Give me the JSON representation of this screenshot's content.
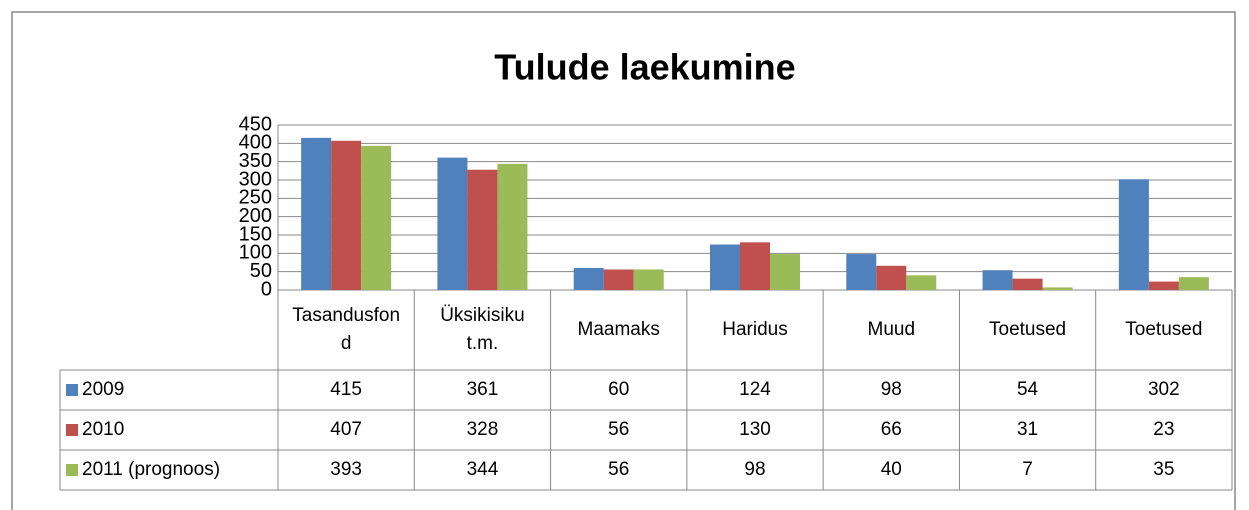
{
  "chart_data": {
    "type": "bar",
    "title": "Tulude laekumine",
    "categories": [
      "Tasandusfond",
      "Üksikisiku t.m.",
      "Maamaks",
      "Haridus",
      "Muud",
      "Toetused",
      "Toetused"
    ],
    "series": [
      {
        "name": "2009",
        "color": "#4f81bd",
        "values": [
          415,
          361,
          60,
          124,
          98,
          54,
          302
        ]
      },
      {
        "name": "2010",
        "color": "#c0504d",
        "values": [
          407,
          328,
          56,
          130,
          66,
          31,
          23
        ]
      },
      {
        "name": "2011 (prognoos)",
        "color": "#9bbb59",
        "values": [
          393,
          344,
          56,
          98,
          40,
          7,
          35
        ]
      }
    ],
    "ylim": [
      0,
      450
    ],
    "yticks": [
      0,
      50,
      100,
      150,
      200,
      250,
      300,
      350,
      400,
      450
    ],
    "grid": true
  }
}
